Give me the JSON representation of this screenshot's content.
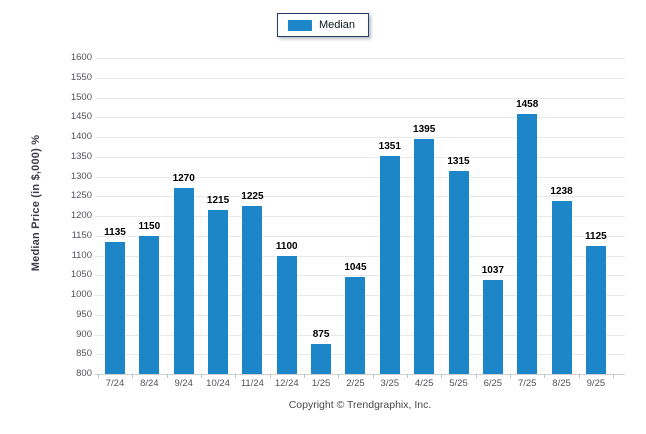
{
  "legend": {
    "label": "Median"
  },
  "footer": {
    "text": "Copyright © Trendgraphix, Inc."
  },
  "chart_data": {
    "type": "bar",
    "title": "",
    "categories": [
      "7/24",
      "8/24",
      "9/24",
      "10/24",
      "11/24",
      "12/24",
      "1/25",
      "2/25",
      "3/25",
      "4/25",
      "5/25",
      "6/25",
      "7/25",
      "8/25",
      "9/25"
    ],
    "series": [
      {
        "name": "Median",
        "values": [
          1135,
          1150,
          1270,
          1215,
          1225,
          1100,
          875,
          1045,
          1351,
          1395,
          1315,
          1037,
          1458,
          1238,
          1125
        ]
      }
    ],
    "xlabel": "",
    "ylabel": "Median Price (in $,000) %",
    "ylim": [
      800,
      1600
    ],
    "ytick_step": 50,
    "grid": true,
    "legend_position": "top-center",
    "value_labels": true,
    "colors": {
      "bar": "#1c86c8",
      "gridline": "#e9e9e9",
      "baseline": "#cfcfcf",
      "axis_text": "#52525e",
      "value_label": "#000000",
      "legend_border": "#1f3b66"
    }
  }
}
